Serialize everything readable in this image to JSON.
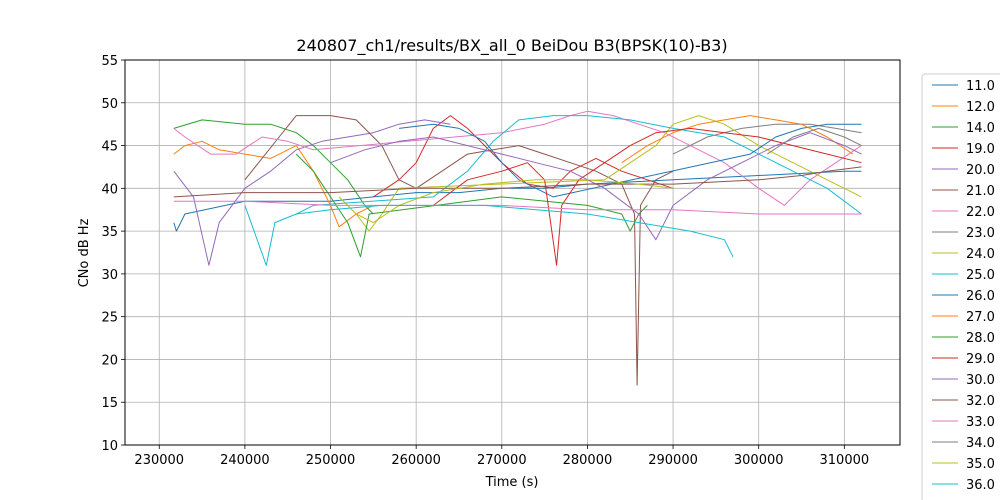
{
  "chart_data": {
    "type": "line",
    "title": "240807_ch1/results/BX_all_0 BeiDou B3(BPSK(10)-B3)",
    "xlabel": "Time (s)",
    "ylabel": "CNo dB Hz",
    "xlim": [
      226000,
      316500
    ],
    "ylim": [
      10,
      55
    ],
    "xticks": [
      230000,
      240000,
      250000,
      260000,
      270000,
      280000,
      290000,
      300000,
      310000
    ],
    "yticks": [
      10,
      15,
      20,
      25,
      30,
      35,
      40,
      45,
      50,
      55
    ],
    "grid": true,
    "legend_position": "right",
    "series": [
      {
        "name": "11.0",
        "color": "#1f77b4",
        "x": [
          231700,
          232000,
          232500,
          233000,
          240000,
          250000,
          255000,
          260000,
          265000,
          270000,
          275000,
          280000,
          290000,
          300000,
          310000,
          312000
        ],
        "y": [
          36,
          35,
          36,
          37,
          38.5,
          38.5,
          39,
          39.5,
          39.5,
          40,
          40,
          40.5,
          41,
          41.5,
          42,
          42
        ]
      },
      {
        "name": "12.0",
        "color": "#ff7f0e",
        "x": [
          231700,
          233000,
          235000,
          237000,
          240000,
          243000,
          246000,
          248000,
          250000,
          251000,
          253000,
          255000
        ],
        "y": [
          44,
          45,
          45.5,
          44.5,
          44,
          43.5,
          45,
          42,
          38,
          35.5,
          37,
          38
        ]
      },
      {
        "name": "14.0",
        "color": "#2ca02c",
        "x": [
          231700,
          235000,
          240000,
          243000,
          246000,
          248000,
          250000,
          252000,
          254000,
          255000
        ],
        "y": [
          47,
          48,
          47.5,
          47.5,
          46.5,
          45,
          43,
          41,
          38,
          37
        ]
      },
      {
        "name": "19.0",
        "color": "#d62728",
        "x": [
          255000,
          258000,
          260000,
          262000,
          264000,
          266000,
          268000,
          270000,
          273000,
          276000,
          278000,
          281000,
          284000,
          287000,
          290000
        ],
        "y": [
          39,
          41,
          43,
          47,
          48.5,
          47,
          45,
          43,
          40.5,
          40,
          42,
          43.5,
          42,
          41,
          40
        ]
      },
      {
        "name": "20.0",
        "color": "#9467bd",
        "x": [
          231700,
          234000,
          235800,
          237000,
          240000,
          243000,
          246000,
          249000,
          252000,
          255000,
          258000,
          261000,
          264000
        ],
        "y": [
          42,
          39,
          31,
          36,
          40,
          42,
          44.5,
          45.5,
          46,
          46.5,
          47.5,
          48,
          47.5
        ]
      },
      {
        "name": "21.0",
        "color": "#8c564b",
        "x": [
          240000,
          244000,
          246000,
          250000,
          253000,
          256000,
          258000,
          260000,
          263000,
          266000,
          269000,
          272000,
          275000,
          278000,
          281000,
          284000,
          285500,
          285800,
          286200,
          288000,
          290000
        ],
        "y": [
          41,
          46,
          48.5,
          48.5,
          48,
          45,
          41,
          40,
          42,
          44,
          44.5,
          45,
          44,
          43,
          42,
          40.5,
          37,
          17,
          38,
          41,
          42
        ]
      },
      {
        "name": "22.0",
        "color": "#e377c2",
        "x": [
          231700,
          233000,
          236000,
          239000,
          242000,
          245000,
          248000,
          270000,
          275000,
          278000,
          280000,
          283000,
          286000,
          289000,
          292000,
          296000,
          300000,
          303000,
          306000,
          309000,
          312000
        ],
        "y": [
          47,
          46,
          44,
          44,
          46,
          45.5,
          44.5,
          46.5,
          47.5,
          48.5,
          49,
          48.5,
          47.5,
          46.5,
          45,
          43,
          40,
          38,
          41,
          43,
          45
        ]
      },
      {
        "name": "23.0",
        "color": "#7f7f7f",
        "x": [
          290000,
          294000,
          298000,
          302000,
          306000,
          309000,
          312000
        ],
        "y": [
          44,
          46,
          47,
          47.5,
          47.5,
          47,
          46.5
        ]
      },
      {
        "name": "24.0",
        "color": "#bcbd22",
        "x": [
          251000,
          253000,
          254500,
          256000,
          258000,
          282000,
          285000,
          288000,
          290000,
          293000,
          296000,
          300000,
          304000,
          308000,
          312000
        ],
        "y": [
          39,
          37,
          35,
          37,
          40,
          41,
          43,
          45,
          47.5,
          48.5,
          47.5,
          45,
          43,
          41,
          39
        ]
      },
      {
        "name": "25.0",
        "color": "#17becf",
        "x": [
          240000,
          242500,
          243500,
          246000,
          248000,
          262000,
          266000,
          269000,
          272000,
          276000,
          280000,
          285000,
          290000,
          296000,
          300000,
          304000,
          308000,
          312000
        ],
        "y": [
          38,
          31,
          36,
          37,
          38,
          39,
          42,
          45.5,
          48,
          48.5,
          48.5,
          48,
          47,
          46,
          44,
          42,
          40,
          37
        ]
      },
      {
        "name": "26.0",
        "color": "#1f77b4",
        "x": [
          258000,
          262000,
          265000,
          268000,
          270000,
          272000,
          274000,
          276000,
          299000,
          302000,
          305000,
          308000,
          312000
        ],
        "y": [
          47,
          47.5,
          47,
          45.5,
          43,
          41,
          40,
          39,
          44,
          46,
          47,
          47.5,
          47.5
        ]
      },
      {
        "name": "27.0",
        "color": "#ff7f0e",
        "x": [
          284000,
          287000,
          290000,
          293000,
          296000,
          299000,
          302000,
          305000,
          308000,
          311000
        ],
        "y": [
          43,
          45,
          46.5,
          47.5,
          48,
          48.5,
          48,
          47.5,
          46,
          44
        ]
      },
      {
        "name": "28.0",
        "color": "#2ca02c",
        "x": [
          246000,
          248000,
          250000,
          252000,
          253500,
          254500,
          270000,
          280000,
          284000,
          285000,
          286000,
          287000
        ],
        "y": [
          44,
          42,
          39,
          36,
          32,
          37,
          39,
          38,
          37,
          35,
          37,
          38
        ]
      },
      {
        "name": "29.0",
        "color": "#d62728",
        "x": [
          262000,
          266000,
          270000,
          273000,
          275000,
          276400,
          277000,
          279000,
          282000,
          285000,
          288000,
          292000,
          296000,
          300000,
          304000,
          308000,
          312000
        ],
        "y": [
          38,
          41,
          42,
          43,
          41,
          31,
          38,
          41,
          43,
          45,
          46.5,
          47,
          46.5,
          46,
          45,
          44,
          43
        ]
      },
      {
        "name": "30.0",
        "color": "#9467bd",
        "x": [
          250000,
          254000,
          258000,
          262000,
          266000,
          270000,
          274000,
          278000,
          282000,
          286000,
          288000,
          290000,
          294000,
          298000,
          302000,
          306000,
          310000,
          312000
        ],
        "y": [
          43,
          44.5,
          45.5,
          46,
          45,
          44,
          43,
          42,
          40,
          37,
          34,
          38,
          41,
          43,
          45,
          46.5,
          45,
          44
        ]
      },
      {
        "name": "32.0",
        "color": "#8c564b",
        "x": [
          231700,
          240000,
          250000,
          260000,
          270000,
          280000,
          290000,
          300000,
          305000,
          308000,
          312000
        ],
        "y": [
          39,
          39.5,
          39.5,
          40,
          40,
          40.5,
          40.5,
          41,
          41.5,
          42,
          42.5
        ]
      },
      {
        "name": "33.0",
        "color": "#e377c2",
        "x": [
          231700,
          240000,
          250000,
          260000,
          270000,
          280000,
          290000,
          300000,
          312000
        ],
        "y": [
          38.5,
          38.5,
          38,
          38,
          38,
          37.5,
          37.5,
          37,
          37
        ]
      },
      {
        "name": "34.0",
        "color": "#7f7f7f",
        "x": [
          301000,
          304000,
          307000,
          310000,
          312000
        ],
        "y": [
          44,
          46,
          47,
          46,
          45
        ]
      },
      {
        "name": "35.0",
        "color": "#bcbd22",
        "x": [
          253000,
          255000,
          258000,
          262000,
          268000,
          274000,
          280000,
          286000,
          290000
        ],
        "y": [
          37,
          36,
          38,
          39.5,
          40.5,
          41,
          41,
          40.5,
          40
        ]
      },
      {
        "name": "36.0",
        "color": "#17becf",
        "x": [
          246000,
          250000,
          256000,
          262000,
          268000,
          274000,
          280000,
          286000,
          292000,
          296000,
          297000
        ],
        "y": [
          37,
          37.5,
          38,
          38,
          38,
          37.5,
          37,
          36,
          35,
          34,
          32
        ]
      }
    ]
  }
}
